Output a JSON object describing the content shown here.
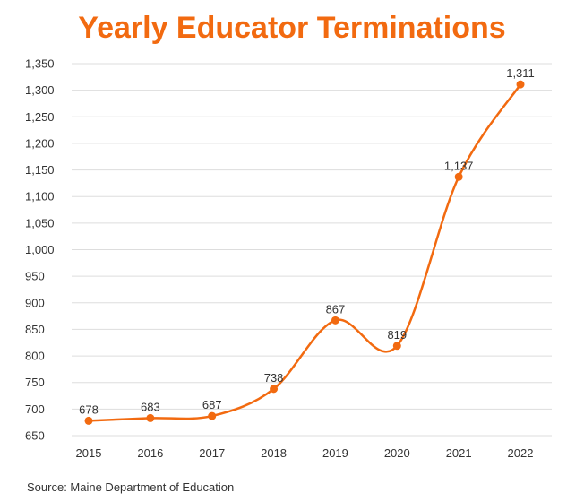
{
  "colors": {
    "accent": "#f26a10",
    "grid": "#dddddd",
    "text": "#333333"
  },
  "source": "Source: Maine Department of Education",
  "chart_data": {
    "type": "line",
    "title": "Yearly Educator Terminations",
    "xlabel": "",
    "ylabel": "",
    "categories": [
      "2015",
      "2016",
      "2017",
      "2018",
      "2019",
      "2020",
      "2021",
      "2022"
    ],
    "series": [
      {
        "values": [
          678,
          683,
          687,
          738,
          867,
          819,
          1137,
          1311
        ]
      }
    ],
    "data_labels": [
      "678",
      "683",
      "687",
      "738",
      "867",
      "819",
      "1,137",
      "1,311"
    ],
    "ylim": [
      650,
      1350
    ],
    "yticks": [
      650,
      700,
      750,
      800,
      850,
      900,
      950,
      1000,
      1050,
      1100,
      1150,
      1200,
      1250,
      1300,
      1350
    ],
    "ytick_labels": [
      "650",
      "700",
      "750",
      "800",
      "850",
      "900",
      "950",
      "1,000",
      "1,050",
      "1,100",
      "1,150",
      "1,200",
      "1,250",
      "1,300",
      "1,350"
    ],
    "grid": true,
    "smooth": true,
    "legend": "none"
  }
}
